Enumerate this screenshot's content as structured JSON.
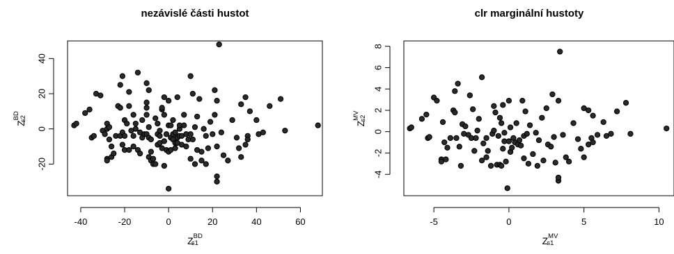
{
  "chart_data": [
    {
      "type": "scatter",
      "title": "nezávislé části hustot",
      "xlabel": {
        "base": "Z",
        "sup": "BD",
        "sub": "s1"
      },
      "ylabel": {
        "base": "Z",
        "sup": "BD",
        "sub": "s2"
      },
      "xlim": [
        -46,
        70
      ],
      "ylim": [
        -38,
        50
      ],
      "xticks": [
        -40,
        -20,
        0,
        20,
        40,
        60
      ],
      "yticks": [
        -20,
        0,
        20,
        40
      ],
      "grid": false,
      "points": [
        [
          -43,
          2
        ],
        [
          -42,
          3
        ],
        [
          -38,
          9
        ],
        [
          -36,
          11
        ],
        [
          -35,
          -5
        ],
        [
          -34,
          -4
        ],
        [
          -33,
          20
        ],
        [
          -31,
          19
        ],
        [
          -30,
          -1
        ],
        [
          -29,
          -3
        ],
        [
          -28,
          -17
        ],
        [
          -28,
          -18
        ],
        [
          -28,
          0
        ],
        [
          -28,
          3
        ],
        [
          -27,
          -6
        ],
        [
          -27,
          1
        ],
        [
          -26,
          -16
        ],
        [
          -26,
          -10
        ],
        [
          -25,
          -14
        ],
        [
          -24,
          -4
        ],
        [
          -23,
          13
        ],
        [
          -22,
          12
        ],
        [
          -22,
          25
        ],
        [
          -22,
          -4
        ],
        [
          -21,
          -9
        ],
        [
          -21,
          30
        ],
        [
          -21,
          -2
        ],
        [
          -20,
          -4
        ],
        [
          -20,
          -12
        ],
        [
          -20,
          5
        ],
        [
          -19,
          3
        ],
        [
          -18,
          21
        ],
        [
          -18,
          13
        ],
        [
          -18,
          -12
        ],
        [
          -17,
          -1
        ],
        [
          -16,
          -4
        ],
        [
          -16,
          8
        ],
        [
          -16,
          -10
        ],
        [
          -15,
          3
        ],
        [
          -15,
          0
        ],
        [
          -14,
          -12
        ],
        [
          -14,
          32
        ],
        [
          -13,
          -14
        ],
        [
          -13,
          -2
        ],
        [
          -12,
          -5
        ],
        [
          -12,
          5
        ],
        [
          -11,
          -3
        ],
        [
          -10,
          26
        ],
        [
          -10,
          15
        ],
        [
          -10,
          8
        ],
        [
          -10,
          12
        ],
        [
          -10,
          -3
        ],
        [
          -9,
          -5
        ],
        [
          -9,
          22
        ],
        [
          -9,
          1
        ],
        [
          -9,
          -16
        ],
        [
          -8,
          -13
        ],
        [
          -8,
          -18
        ],
        [
          -8,
          -6
        ],
        [
          -7,
          -17
        ],
        [
          -7,
          -20
        ],
        [
          -6,
          -20
        ],
        [
          -6,
          6
        ],
        [
          -5,
          -9
        ],
        [
          -5,
          -3
        ],
        [
          -5,
          3
        ],
        [
          -4,
          -8
        ],
        [
          -4,
          -1
        ],
        [
          -4,
          -4
        ],
        [
          -3,
          11
        ],
        [
          -3,
          -11
        ],
        [
          -3,
          12
        ],
        [
          -2,
          -21
        ],
        [
          -2,
          18
        ],
        [
          -2,
          8
        ],
        [
          -2,
          -7
        ],
        [
          -1,
          -12
        ],
        [
          -1,
          -3
        ],
        [
          0,
          -34
        ],
        [
          0,
          16
        ],
        [
          0,
          -13
        ],
        [
          0,
          2
        ],
        [
          1,
          -12
        ],
        [
          1,
          -5
        ],
        [
          1,
          2
        ],
        [
          2,
          -3
        ],
        [
          2,
          5
        ],
        [
          2,
          -6
        ],
        [
          3,
          -11
        ],
        [
          3,
          -8
        ],
        [
          3,
          -2
        ],
        [
          4,
          18
        ],
        [
          4,
          -5
        ],
        [
          4,
          -8
        ],
        [
          5,
          -4
        ],
        [
          5,
          0
        ],
        [
          5,
          2
        ],
        [
          6,
          -4
        ],
        [
          6,
          -9
        ],
        [
          7,
          8
        ],
        [
          7,
          2
        ],
        [
          8,
          -10
        ],
        [
          8,
          -3
        ],
        [
          9,
          -6
        ],
        [
          10,
          -3
        ],
        [
          10,
          -17
        ],
        [
          10,
          30
        ],
        [
          11,
          20
        ],
        [
          11,
          -6
        ],
        [
          12,
          -20
        ],
        [
          12,
          1
        ],
        [
          13,
          -12
        ],
        [
          13,
          7
        ],
        [
          14,
          17
        ],
        [
          15,
          -18
        ],
        [
          15,
          -13
        ],
        [
          16,
          0
        ],
        [
          17,
          -4
        ],
        [
          17,
          -20
        ],
        [
          18,
          -11
        ],
        [
          19,
          4
        ],
        [
          20,
          -3
        ],
        [
          21,
          22
        ],
        [
          21,
          8
        ],
        [
          22,
          -10
        ],
        [
          22,
          -30
        ],
        [
          22,
          -27
        ],
        [
          23,
          48
        ],
        [
          22,
          16
        ],
        [
          24,
          -2
        ],
        [
          25,
          -15
        ],
        [
          27,
          -18
        ],
        [
          29,
          5
        ],
        [
          31,
          -5
        ],
        [
          32,
          -11
        ],
        [
          33,
          -16
        ],
        [
          33,
          14
        ],
        [
          35,
          -9
        ],
        [
          35,
          18
        ],
        [
          36,
          -4
        ],
        [
          36,
          -6
        ],
        [
          37,
          10
        ],
        [
          40,
          5
        ],
        [
          41,
          -3
        ],
        [
          43,
          -2
        ],
        [
          46,
          13
        ],
        [
          51,
          17
        ],
        [
          53,
          -1
        ],
        [
          68,
          2
        ]
      ]
    },
    {
      "type": "scatter",
      "title": "clr marginální hustoty",
      "xlabel": {
        "base": "Z",
        "sup": "MV",
        "sub": "s1"
      },
      "ylabel": {
        "base": "Z",
        "sup": "MV",
        "sub": "s2"
      },
      "xlim": [
        -7,
        11
      ],
      "ylim": [
        -6,
        8.5
      ],
      "xticks": [
        -5,
        0,
        5,
        10
      ],
      "yticks": [
        -4,
        -2,
        0,
        2,
        4,
        6,
        8
      ],
      "grid": false,
      "points": [
        [
          -6.6,
          0.3
        ],
        [
          -6.5,
          0.4
        ],
        [
          -5.8,
          1.2
        ],
        [
          -5.5,
          1.6
        ],
        [
          -5.4,
          -0.6
        ],
        [
          -5.3,
          -0.5
        ],
        [
          -5,
          3.2
        ],
        [
          -4.8,
          2.9
        ],
        [
          -4.5,
          -2.6
        ],
        [
          -4.5,
          -2.8
        ],
        [
          -4.4,
          0.9
        ],
        [
          -4.3,
          -1
        ],
        [
          -4.2,
          -2.6
        ],
        [
          -4.1,
          -1.5
        ],
        [
          -3.9,
          -0.6
        ],
        [
          -3.7,
          2
        ],
        [
          -3.6,
          1.8
        ],
        [
          -3.6,
          3.8
        ],
        [
          -3.5,
          -0.6
        ],
        [
          -3.4,
          4.5
        ],
        [
          -3.3,
          -1.4
        ],
        [
          -3.2,
          -3.2
        ],
        [
          -3.1,
          0.7
        ],
        [
          -3,
          -0.2
        ],
        [
          -2.9,
          0.5
        ],
        [
          -2.7,
          -0.3
        ],
        [
          -2.6,
          3.4
        ],
        [
          -2.5,
          -0.6
        ],
        [
          -2.4,
          2.1
        ],
        [
          -2.3,
          -1.8
        ],
        [
          -2.2,
          -0.6
        ],
        [
          -2.1,
          0.1
        ],
        [
          -2,
          1.2
        ],
        [
          -1.8,
          -2.7
        ],
        [
          -1.8,
          5.1
        ],
        [
          -1.7,
          -1.1
        ],
        [
          -1.5,
          -2.4
        ],
        [
          -1.5,
          -0.6
        ],
        [
          -1.4,
          -1.8
        ],
        [
          -1.2,
          -3.2
        ],
        [
          -1.1,
          -0.2
        ],
        [
          -1,
          2.4
        ],
        [
          -1,
          0.1
        ],
        [
          -0.9,
          1.8
        ],
        [
          -0.8,
          -3.1
        ],
        [
          -0.7,
          -0.4
        ],
        [
          -0.6,
          -3.1
        ],
        [
          -0.6,
          1.3
        ],
        [
          -0.5,
          -3.2
        ],
        [
          -0.5,
          0.8
        ],
        [
          -0.4,
          -1.6
        ],
        [
          -0.4,
          2.5
        ],
        [
          -0.3,
          -0.1
        ],
        [
          -0.3,
          -0.9
        ],
        [
          -0.2,
          -2.8
        ],
        [
          -0.1,
          -5.3
        ],
        [
          0,
          -0.9
        ],
        [
          0,
          2.9
        ],
        [
          0.1,
          -1.9
        ],
        [
          0.1,
          0.4
        ],
        [
          0.2,
          -1.5
        ],
        [
          0.3,
          -0.6
        ],
        [
          0.4,
          -1
        ],
        [
          0.5,
          0.8
        ],
        [
          0.6,
          -1.2
        ],
        [
          0.7,
          -0.8
        ],
        [
          0.8,
          -1.3
        ],
        [
          0.9,
          2.9
        ],
        [
          1,
          -0.4
        ],
        [
          1,
          -2.5
        ],
        [
          1.1,
          1.9
        ],
        [
          1.2,
          -0.2
        ],
        [
          1.3,
          -3
        ],
        [
          1.4,
          0.6
        ],
        [
          1.6,
          -2.1
        ],
        [
          1.8,
          -0.1
        ],
        [
          1.9,
          -3.2
        ],
        [
          2,
          -0.8
        ],
        [
          2.2,
          1.3
        ],
        [
          2.3,
          -2.7
        ],
        [
          2.5,
          2.2
        ],
        [
          2.6,
          -1.2
        ],
        [
          2.8,
          -1.4
        ],
        [
          2.9,
          3.5
        ],
        [
          3,
          -0.5
        ],
        [
          3.1,
          -2.9
        ],
        [
          3.3,
          -4.6
        ],
        [
          3.3,
          -4.3
        ],
        [
          3.4,
          7.5
        ],
        [
          3.3,
          2.9
        ],
        [
          3.6,
          -0.3
        ],
        [
          3.8,
          -2.4
        ],
        [
          4,
          -2.8
        ],
        [
          4.3,
          0.8
        ],
        [
          4.6,
          -0.7
        ],
        [
          4.8,
          -1.6
        ],
        [
          5,
          -2.4
        ],
        [
          5,
          2.2
        ],
        [
          5.3,
          -1.2
        ],
        [
          5.3,
          2
        ],
        [
          5.5,
          -0.6
        ],
        [
          5.6,
          -1
        ],
        [
          5.6,
          1.5
        ],
        [
          5.9,
          -0.3
        ],
        [
          6.3,
          0.9
        ],
        [
          6.5,
          -0.4
        ],
        [
          6.8,
          -0.2
        ],
        [
          7.2,
          1.9
        ],
        [
          7.8,
          2.7
        ],
        [
          8.1,
          -0.2
        ],
        [
          10.5,
          0.3
        ]
      ]
    }
  ]
}
